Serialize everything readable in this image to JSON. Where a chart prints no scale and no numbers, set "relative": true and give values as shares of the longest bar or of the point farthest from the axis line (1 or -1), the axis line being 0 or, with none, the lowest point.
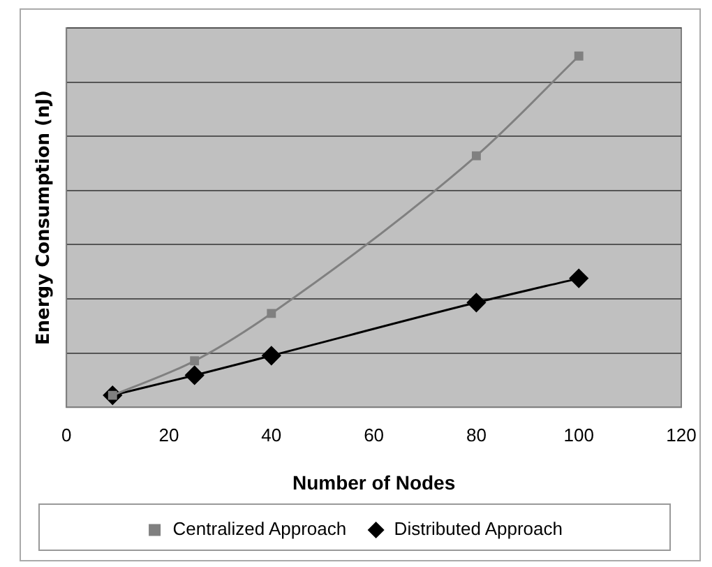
{
  "chart_data": {
    "type": "line",
    "xlabel": "Number of Nodes",
    "ylabel": "Energy Consumption (nJ)",
    "x": [
      9,
      25,
      40,
      80,
      100
    ],
    "series": [
      {
        "name": "Centralized Approach",
        "color": "#808080",
        "marker": "square",
        "values": [
          0.034,
          0.132,
          0.267,
          0.716,
          1
        ]
      },
      {
        "name": "Distributed Approach",
        "color": "#000000",
        "marker": "diamond",
        "values": [
          0.034,
          0.091,
          0.147,
          0.298,
          0.367
        ]
      }
    ],
    "relative": true,
    "xlim": [
      0,
      120
    ],
    "xticks": [
      0,
      20,
      40,
      60,
      80,
      100,
      120
    ],
    "grid": "y",
    "legend": "bottom",
    "line_style": "solid"
  }
}
